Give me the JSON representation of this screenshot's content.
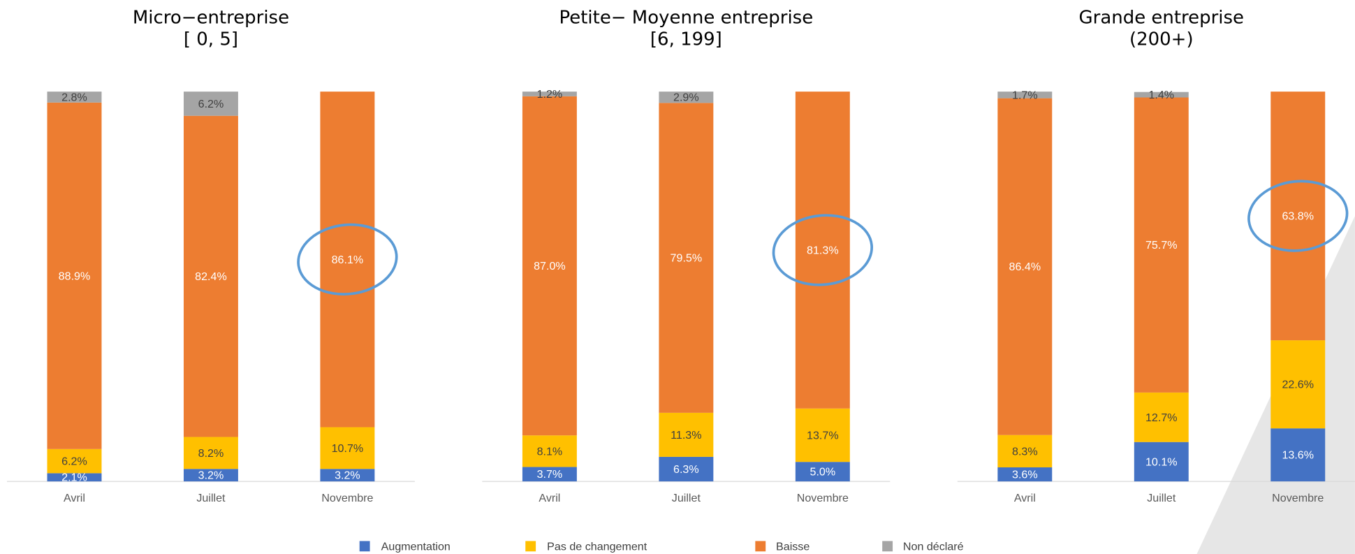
{
  "chart_data": [
    {
      "type": "bar",
      "stacked": true,
      "title": "Micro−entreprise",
      "subtitle": "[ 0, 5]",
      "categories": [
        "Avril",
        "Juillet",
        "Novembre"
      ],
      "ylim": [
        0,
        100
      ],
      "series": [
        {
          "name": "Augmentation",
          "color": "#4472c4",
          "values": [
            2.1,
            3.2,
            3.2
          ],
          "value_labels": [
            "2.1%",
            "3.2%",
            "3.2%"
          ]
        },
        {
          "name": "Pas de changement",
          "color": "#ffc000",
          "values": [
            6.2,
            8.2,
            10.7
          ],
          "value_labels": [
            "6.2%",
            "8.2%",
            "10.7%"
          ]
        },
        {
          "name": "Baisse",
          "color": "#ed7d31",
          "values": [
            88.9,
            82.4,
            86.1
          ],
          "value_labels": [
            "88.9%",
            "82.4%",
            "86.1%"
          ]
        },
        {
          "name": "Non déclaré",
          "color": "#a5a5a5",
          "values": [
            2.8,
            6.2,
            null
          ],
          "value_labels": [
            "2.8%",
            "6.2%",
            null
          ]
        }
      ]
    },
    {
      "type": "bar",
      "stacked": true,
      "title": "Petite− Moyenne entreprise",
      "subtitle": "[6, 199]",
      "categories": [
        "Avril",
        "Juillet",
        "Novembre"
      ],
      "ylim": [
        0,
        100
      ],
      "series": [
        {
          "name": "Augmentation",
          "color": "#4472c4",
          "values": [
            3.7,
            6.3,
            5.0
          ],
          "value_labels": [
            "3.7%",
            "6.3%",
            "5.0%"
          ]
        },
        {
          "name": "Pas de changement",
          "color": "#ffc000",
          "values": [
            8.1,
            11.3,
            13.7
          ],
          "value_labels": [
            "8.1%",
            "11.3%",
            "13.7%"
          ]
        },
        {
          "name": "Baisse",
          "color": "#ed7d31",
          "values": [
            87.0,
            79.5,
            81.3
          ],
          "value_labels": [
            "87.0%",
            "79.5%",
            "81.3%"
          ]
        },
        {
          "name": "Non déclaré",
          "color": "#a5a5a5",
          "values": [
            1.2,
            2.9,
            null
          ],
          "value_labels": [
            "1.2%",
            "2.9%",
            null
          ]
        }
      ]
    },
    {
      "type": "bar",
      "stacked": true,
      "title": "Grande entreprise",
      "subtitle": "(200+)",
      "categories": [
        "Avril",
        "Juillet",
        "Novembre"
      ],
      "ylim": [
        0,
        100
      ],
      "series": [
        {
          "name": "Augmentation",
          "color": "#4472c4",
          "values": [
            3.6,
            10.1,
            13.6
          ],
          "value_labels": [
            "3.6%",
            "10.1%",
            "13.6%"
          ]
        },
        {
          "name": "Pas de changement",
          "color": "#ffc000",
          "values": [
            8.3,
            12.7,
            22.6
          ],
          "value_labels": [
            "8.3%",
            "12.7%",
            "22.6%"
          ]
        },
        {
          "name": "Baisse",
          "color": "#ed7d31",
          "values": [
            86.4,
            75.7,
            63.8
          ],
          "value_labels": [
            "86.4%",
            "75.7%",
            "63.8%"
          ]
        },
        {
          "name": "Non déclaré",
          "color": "#a5a5a5",
          "values": [
            1.7,
            1.4,
            null
          ],
          "value_labels": [
            "1.7%",
            "1.4%",
            null
          ]
        }
      ]
    }
  ]
}
